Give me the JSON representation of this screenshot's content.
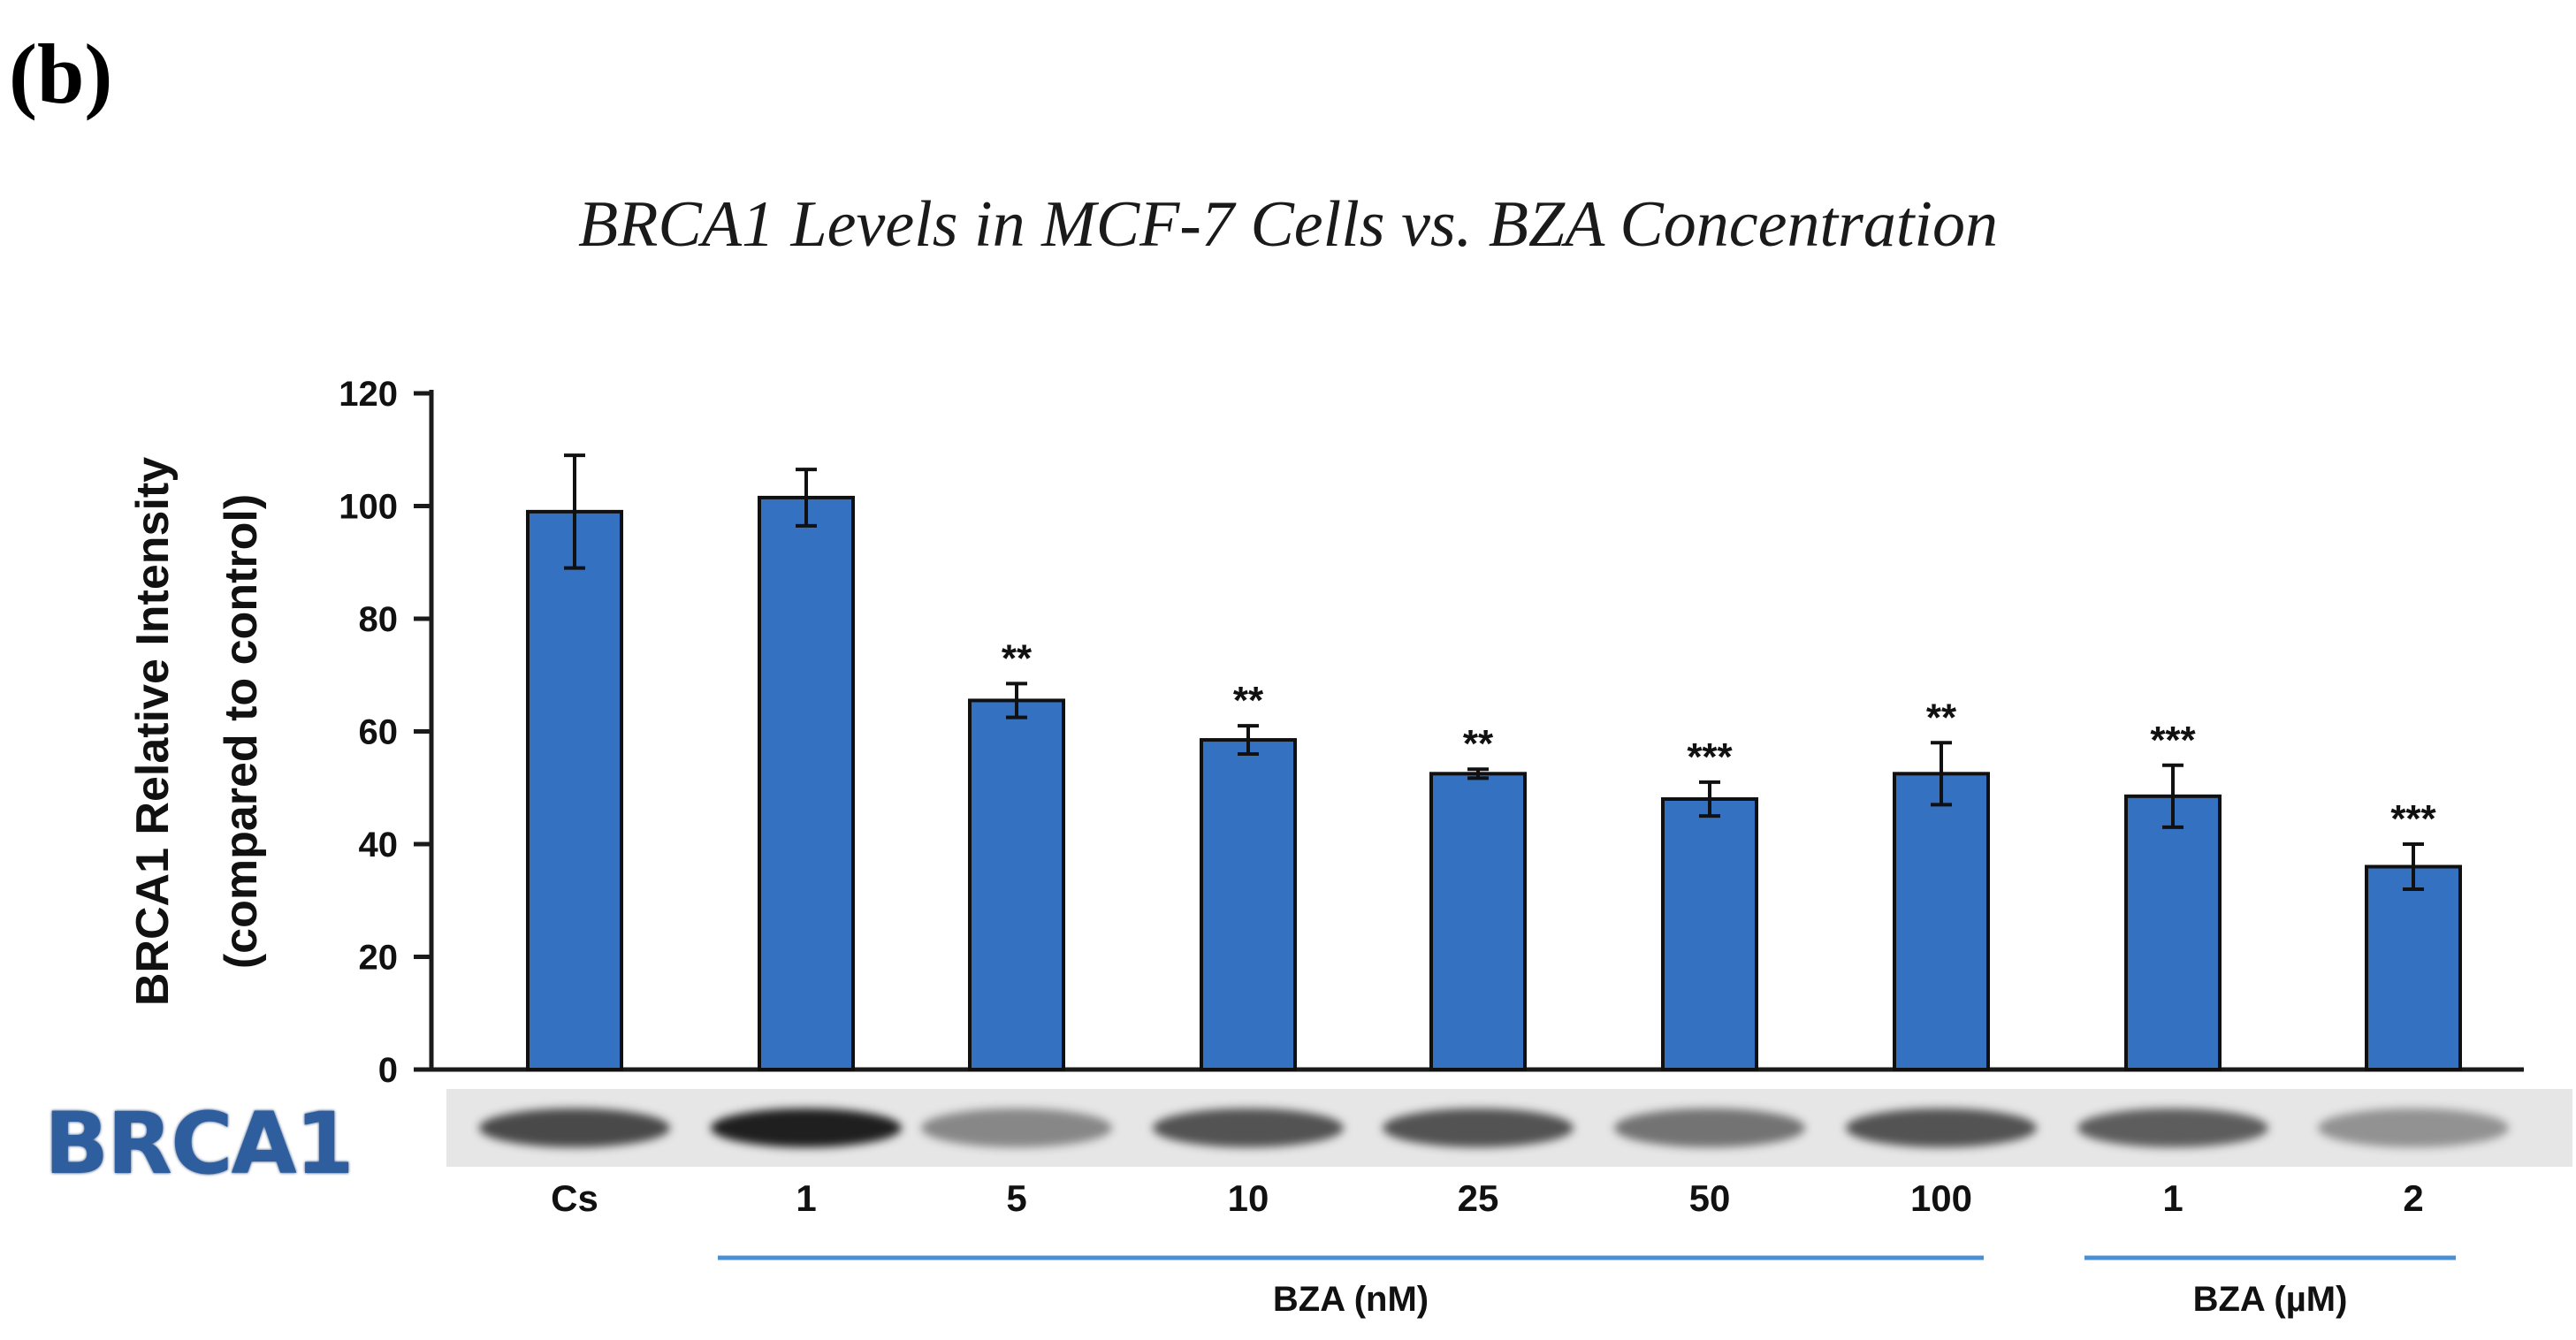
{
  "panel_label": "(b)",
  "protein_label": "BRCA1",
  "colors": {
    "bar": "#3471c1",
    "bar_edge": "#101010",
    "group_line": "#4a8fd4",
    "axis": "#1a1a1a"
  },
  "chart_data": {
    "type": "bar",
    "title": "BRCA1 Levels in MCF-7 Cells vs. BZA Concentration",
    "ylabel_line1": "BRCA1 Relative Intensity",
    "ylabel_line2": "(compared to control)",
    "ylim": [
      0,
      120
    ],
    "yticks": [
      0,
      20,
      40,
      60,
      80,
      100,
      120
    ],
    "categories": [
      "Cs",
      "1",
      "5",
      "10",
      "25",
      "50",
      "100",
      "1",
      "2"
    ],
    "values": [
      99,
      101.5,
      65.5,
      58.5,
      52.5,
      48,
      52.5,
      48.5,
      36
    ],
    "errors": [
      10,
      5,
      3,
      2.5,
      0.8,
      3,
      5.5,
      5.5,
      4
    ],
    "significance": [
      "",
      "",
      "**",
      "**",
      "**",
      "***",
      "**",
      "***",
      "***"
    ],
    "groups": [
      {
        "label": "BZA (nM)",
        "start": 1,
        "end": 6
      },
      {
        "label": "BZA (µM)",
        "start": 7,
        "end": 8
      }
    ],
    "band_intensity": [
      0.75,
      0.95,
      0.45,
      0.7,
      0.7,
      0.55,
      0.7,
      0.65,
      0.4
    ]
  }
}
